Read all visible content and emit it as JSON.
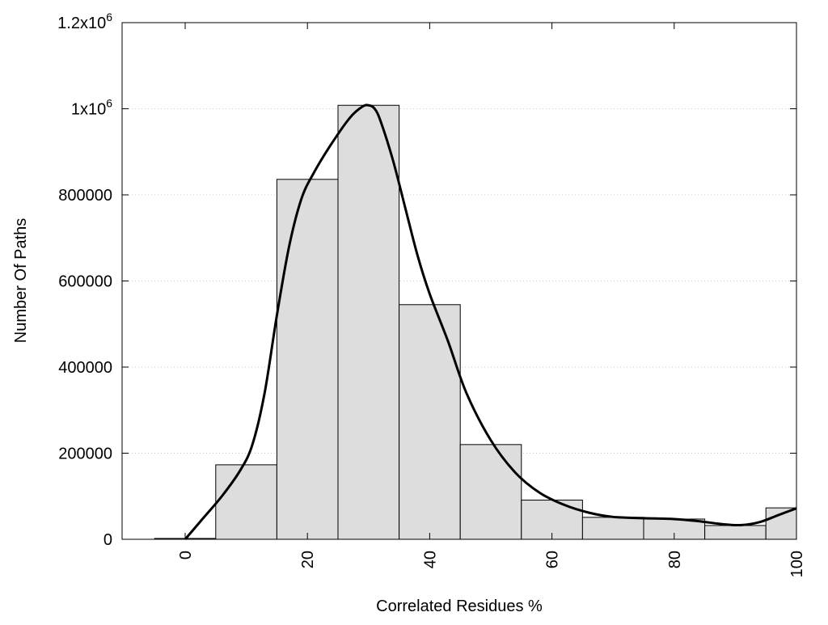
{
  "chart_data": {
    "type": "bar",
    "title": "",
    "xlabel": "Correlated Residues %",
    "ylabel": "Number Of Paths",
    "xlim": [
      -10.3,
      100
    ],
    "ylim": [
      0,
      1200000
    ],
    "grid": "horizontal dotted",
    "legend": "none",
    "bar_width": 10,
    "bar_color": "#dddddd",
    "curve_color": "#000000",
    "x_ticks": [
      0,
      20,
      40,
      60,
      80,
      100
    ],
    "x_tick_labels": [
      "0",
      "20",
      "40",
      "60",
      "80",
      "100"
    ],
    "y_ticks": [
      0,
      200000,
      400000,
      600000,
      800000,
      1000000,
      1200000
    ],
    "y_tick_labels": [
      {
        "base": "0",
        "exp": ""
      },
      {
        "base": "200000",
        "exp": ""
      },
      {
        "base": "400000",
        "exp": ""
      },
      {
        "base": "600000",
        "exp": ""
      },
      {
        "base": "800000",
        "exp": ""
      },
      {
        "base": "1x10",
        "exp": "6"
      },
      {
        "base": "1.2x10",
        "exp": "6"
      }
    ],
    "bars": {
      "x": [
        0,
        10,
        20,
        30,
        40,
        50,
        60,
        70,
        80,
        90,
        100
      ],
      "values": [
        2000,
        173000,
        836000,
        1008000,
        545000,
        220000,
        91000,
        51000,
        47000,
        32000,
        73000
      ]
    },
    "curve": {
      "x": [
        0,
        3,
        6,
        9,
        11,
        13,
        15,
        17,
        19,
        21,
        24,
        27,
        29,
        30,
        31,
        32,
        34,
        36,
        38,
        40,
        43,
        46,
        50,
        54,
        58,
        62,
        66,
        70,
        75,
        80,
        84,
        88,
        91,
        94,
        97,
        100
      ],
      "y": [
        0,
        50000,
        100000,
        160000,
        220000,
        340000,
        520000,
        680000,
        790000,
        850000,
        920000,
        980000,
        1005000,
        1008000,
        1000000,
        970000,
        880000,
        770000,
        660000,
        570000,
        460000,
        340000,
        230000,
        155000,
        108000,
        80000,
        62000,
        52000,
        49000,
        47000,
        42000,
        35000,
        33000,
        40000,
        56000,
        72000
      ]
    }
  }
}
